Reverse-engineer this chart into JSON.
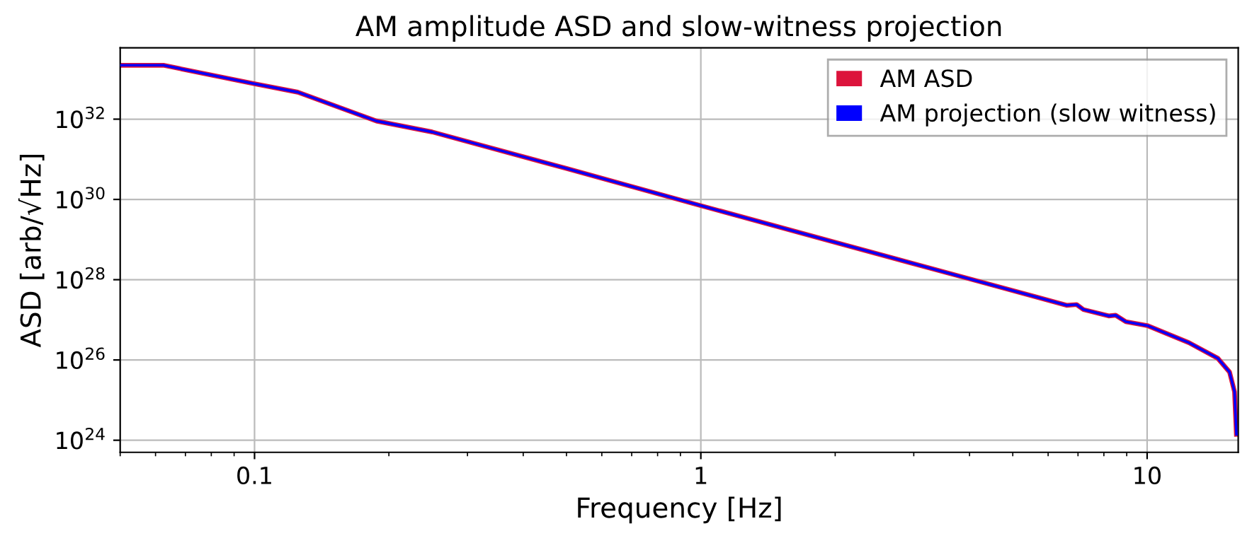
{
  "chart_data": {
    "type": "line",
    "title": "AM amplitude ASD and slow-witness projection",
    "xlabel": "Frequency [Hz]",
    "ylabel": "ASD [arb/√Hz]",
    "x": [
      0.05,
      0.0625,
      0.1,
      0.125,
      0.1875,
      0.25,
      0.5,
      1,
      2,
      4,
      5.7,
      6.6,
      6.95,
      7.2,
      8.2,
      8.5,
      8.96,
      10,
      12.4,
      14.4,
      15.3,
      15.7,
      15.85
    ],
    "series": [
      {
        "name": "AM ASD",
        "color": "#dc143c",
        "values": [
          2.2e+33,
          2.2e+33,
          7.6e+32,
          4.7e+32,
          9e+31,
          4.8e+31,
          5.9e+30,
          7e+29,
          8.5e+28,
          1.05e+28,
          3.6e+27,
          2.3e+27,
          2.4e+27,
          1.8e+27,
          1.25e+27,
          1.3e+27,
          9e+26,
          7.2e+26,
          2.7e+26,
          1.1e+26,
          5e+25,
          1.6e+25,
          1.4e+24
        ]
      },
      {
        "name": "AM projection (slow witness)",
        "color": "#0000ff",
        "values": [
          2.2e+33,
          2.2e+33,
          7.6e+32,
          4.7e+32,
          9e+31,
          4.8e+31,
          5.9e+30,
          7e+29,
          8.5e+28,
          1.05e+28,
          3.6e+27,
          2.3e+27,
          2.4e+27,
          1.8e+27,
          1.25e+27,
          1.3e+27,
          9e+26,
          7.2e+26,
          2.7e+26,
          1.1e+26,
          5e+25,
          1.6e+25,
          1.4e+24
        ]
      }
    ],
    "log": "xy",
    "xlim": [
      0.05,
      16
    ],
    "ylim": [
      5e+23,
      6e+33
    ],
    "xticks": [
      {
        "value": 0.1,
        "label": "0.1"
      },
      {
        "value": 1,
        "label": "1"
      },
      {
        "value": 10,
        "label": "10"
      }
    ],
    "yticks": [
      {
        "value": 1e+24,
        "label": "10$^{24}$"
      },
      {
        "value": 1e+26,
        "label": "10$^{26}$"
      },
      {
        "value": 1e+28,
        "label": "10$^{28}$"
      },
      {
        "value": 1e+30,
        "label": "10$^{30}$"
      },
      {
        "value": 1e+32,
        "label": "10$^{32}$"
      }
    ],
    "grid": true,
    "legend": "top right",
    "line_style": "solid",
    "marker": "none"
  }
}
